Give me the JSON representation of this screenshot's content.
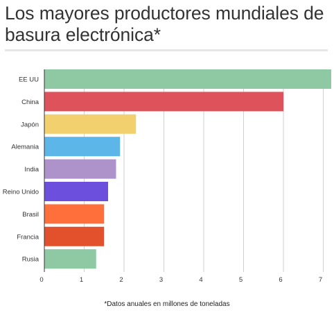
{
  "title": "Los mayores productores mundiales de basura electrónica*",
  "footnote": "*Datos anuales en millones de toneladas",
  "chart_data": {
    "type": "bar",
    "orientation": "horizontal",
    "title": "Los mayores productores mundiales de basura electrónica*",
    "xlabel": "",
    "ylabel": "",
    "categories": [
      "EE UU",
      "China",
      "Japón",
      "Alemania",
      "India",
      "Reino Unido",
      "Brasil",
      "Francia",
      "Rusia"
    ],
    "values": [
      7.2,
      6.0,
      2.3,
      1.9,
      1.8,
      1.6,
      1.5,
      1.5,
      1.3
    ],
    "colors": [
      "#8ec9a3",
      "#de525b",
      "#f2d06e",
      "#5db6e8",
      "#ae93cb",
      "#6c4fdc",
      "#ff6f3c",
      "#e3512c",
      "#8ec9a3"
    ],
    "xlim": [
      0,
      7.2
    ],
    "xticks": [
      "0",
      "1",
      "2",
      "3",
      "4",
      "5",
      "6",
      "7"
    ],
    "grid": true
  }
}
